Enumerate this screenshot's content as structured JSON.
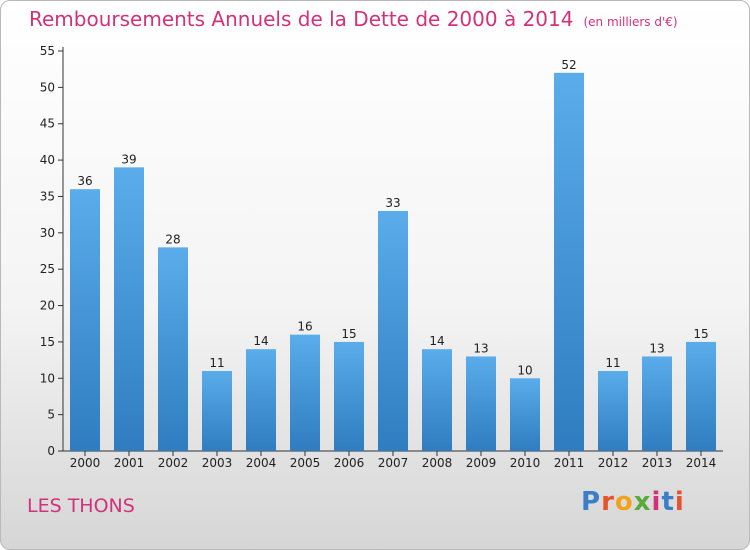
{
  "title": "Remboursements Annuels de la Dette de 2000 à 2014",
  "subtitle": "(en milliers d'€)",
  "commune": "LES THONS",
  "logo": {
    "text": "Proxiti",
    "letter_colors": [
      "#3a7dc9",
      "#e8522f",
      "#f3a21b",
      "#5aab3c",
      "#d4317b",
      "#3a7dc9",
      "#e8522f"
    ]
  },
  "colors": {
    "title": "#d4317b",
    "bar_top": "#5aacea",
    "bar_bottom": "#2f7dc0"
  },
  "chart_data": {
    "type": "bar",
    "categories": [
      "2000",
      "2001",
      "2002",
      "2003",
      "2004",
      "2005",
      "2006",
      "2007",
      "2008",
      "2009",
      "2010",
      "2011",
      "2012",
      "2013",
      "2014"
    ],
    "values": [
      36,
      39,
      28,
      11,
      14,
      16,
      15,
      33,
      14,
      13,
      10,
      52,
      11,
      13,
      15
    ],
    "ylim": [
      0,
      55
    ],
    "yticks": [
      0,
      5,
      10,
      15,
      20,
      25,
      30,
      35,
      40,
      45,
      50,
      55
    ],
    "xlabel": "",
    "ylabel": "",
    "grid": false
  }
}
